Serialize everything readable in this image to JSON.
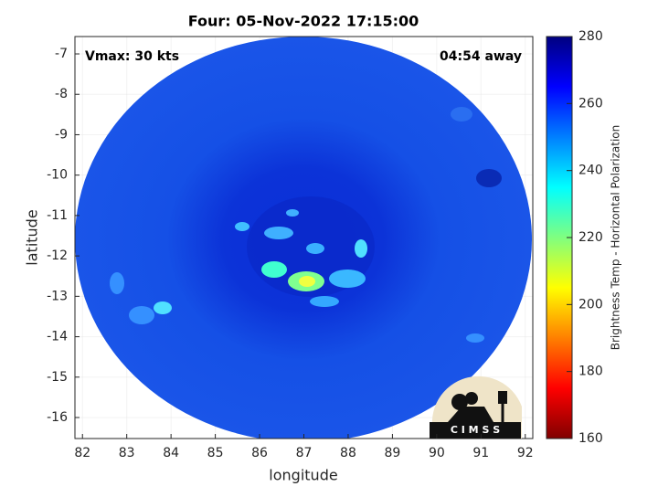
{
  "chart_data": {
    "type": "map",
    "title": "Four: 05-Nov-2022 17:15:00",
    "annotations": [
      "Vmax: 30 kts",
      "04:54 away"
    ],
    "x_label": "longitude",
    "y_label": "latitude",
    "xlim": [
      81.83,
      92.17
    ],
    "xticks": [
      82,
      83,
      84,
      85,
      86,
      87,
      88,
      89,
      90,
      91,
      92
    ],
    "ylim": [
      -16.52,
      -6.57
    ],
    "yticks": [
      -7,
      -8,
      -9,
      -10,
      -11,
      -12,
      -13,
      -14,
      -15,
      -16
    ],
    "grid": true,
    "colorbar": {
      "label": "Brightness Temp - Horizontal Polarization",
      "lim": [
        160,
        280
      ],
      "ticks": [
        160,
        180,
        200,
        220,
        240,
        260,
        280
      ]
    },
    "logo_text": "C I M S S"
  }
}
